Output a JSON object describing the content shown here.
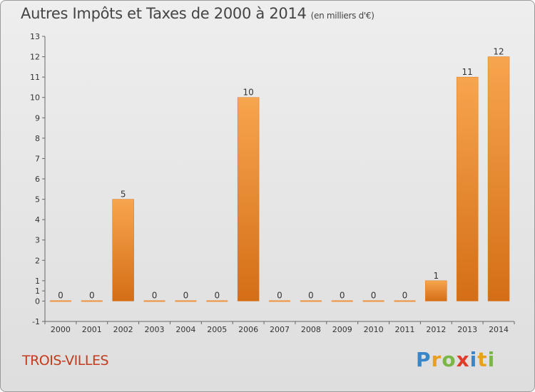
{
  "chart_data": {
    "type": "bar",
    "title": "Autres Impôts et Taxes de 2000 à 2014",
    "subtitle": "(en milliers d'€)",
    "categories": [
      "2000",
      "2001",
      "2002",
      "2003",
      "2004",
      "2005",
      "2006",
      "2007",
      "2008",
      "2009",
      "2010",
      "2011",
      "2012",
      "2013",
      "2014"
    ],
    "values": [
      0,
      0,
      5,
      0,
      0,
      0,
      10,
      0,
      0,
      0,
      0,
      0,
      1,
      11,
      12
    ],
    "ylim": [
      -1,
      13
    ],
    "yticks": [
      "-1",
      "0",
      "1",
      "1",
      "2",
      "3",
      "4",
      "5",
      "6",
      "7",
      "8",
      "9",
      "10",
      "11",
      "12",
      "13"
    ],
    "grid": false,
    "bar_color": "#f0923c"
  },
  "footer": {
    "commune": "TROIS-VILLES",
    "logo": "Proxiti"
  },
  "logo_colors": [
    "#3a86c8",
    "#e8a020",
    "#7ab648",
    "#e03c28",
    "#3a86c8",
    "#e8a020",
    "#7ab648"
  ]
}
